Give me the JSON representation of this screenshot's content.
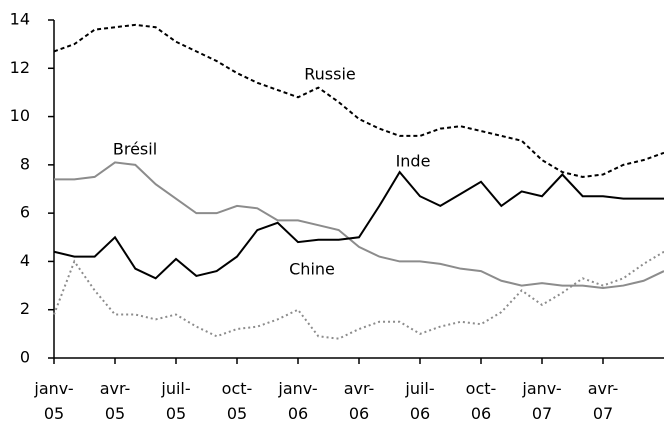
{
  "chart_data": {
    "type": "line",
    "categories": [
      "janv-05",
      null,
      null,
      "avr-05",
      null,
      null,
      "juil-05",
      null,
      null,
      "oct-05",
      null,
      null,
      "janv-06",
      null,
      null,
      "avr-06",
      null,
      null,
      "juil-06",
      null,
      null,
      "oct-06",
      null,
      null,
      "janv-07",
      null,
      null,
      "avr-07",
      null,
      null,
      null
    ],
    "ylim": [
      0,
      14
    ],
    "yticks": [
      0,
      2,
      4,
      6,
      8,
      10,
      12,
      14
    ],
    "grid": false,
    "series": [
      {
        "name": "Russie",
        "color": "#000000",
        "style": "dashed",
        "values": [
          12.7,
          13.0,
          13.6,
          13.7,
          13.8,
          13.7,
          13.1,
          12.7,
          12.3,
          11.8,
          11.4,
          11.1,
          10.8,
          11.2,
          10.6,
          9.9,
          9.5,
          9.2,
          9.2,
          9.5,
          9.6,
          9.4,
          9.2,
          9.0,
          8.2,
          7.7,
          7.5,
          7.6,
          8.0,
          8.2,
          8.5
        ]
      },
      {
        "name": "Brésil",
        "color": "#8c8c8c",
        "style": "solid",
        "values": [
          7.4,
          7.4,
          7.5,
          8.1,
          8.0,
          7.2,
          6.6,
          6.0,
          6.0,
          6.3,
          6.2,
          5.7,
          5.7,
          5.5,
          5.3,
          4.6,
          4.2,
          4.0,
          4.0,
          3.9,
          3.7,
          3.6,
          3.2,
          3.0,
          3.1,
          3.0,
          3.0,
          2.9,
          3.0,
          3.2,
          3.6
        ]
      },
      {
        "name": "Inde",
        "color": "#000000",
        "style": "solid",
        "values": [
          4.4,
          4.2,
          4.2,
          5.0,
          3.7,
          3.3,
          4.1,
          3.4,
          3.6,
          4.2,
          5.3,
          5.6,
          4.8,
          4.9,
          4.9,
          5.0,
          6.3,
          7.7,
          6.7,
          6.3,
          6.8,
          7.3,
          6.3,
          6.9,
          6.7,
          7.6,
          6.7,
          6.7,
          6.6,
          6.6,
          6.6
        ]
      },
      {
        "name": "Chine",
        "color": "#8c8c8c",
        "style": "dotted",
        "values": [
          1.8,
          4.0,
          2.8,
          1.8,
          1.8,
          1.6,
          1.8,
          1.3,
          0.9,
          1.2,
          1.3,
          1.6,
          2.0,
          0.9,
          0.8,
          1.2,
          1.5,
          1.5,
          1.0,
          1.3,
          1.5,
          1.4,
          1.9,
          2.8,
          2.2,
          2.7,
          3.3,
          3.0,
          3.3,
          3.9,
          4.4
        ]
      }
    ]
  }
}
